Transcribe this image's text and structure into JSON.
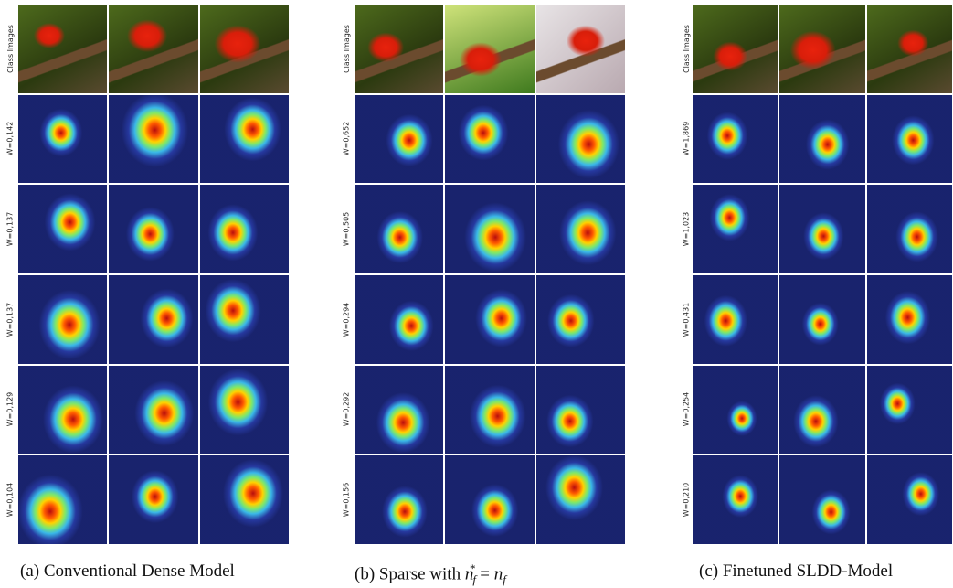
{
  "panels": [
    {
      "caption": [
        "(a) Conventional Dense Model"
      ],
      "row_labels": [
        "Class Images",
        "W=0,142",
        "W=0,137",
        "W=0,137",
        "W=0,129",
        "W=0,104"
      ]
    },
    {
      "caption": [
        "(b) Sparse with ",
        "n",
        "f",
        "*",
        " = ",
        "n",
        "f"
      ],
      "row_labels": [
        "Class Images",
        "W=0,652",
        "W=0,505",
        "W=0,294",
        "W=0,292",
        "W=0,156"
      ]
    },
    {
      "caption": [
        "(c) Finetuned SLDD-Model"
      ],
      "row_labels": [
        "Class Images",
        "W=1,869",
        "W=1,023",
        "W=0,431",
        "W=0,254",
        "W=0,210"
      ]
    }
  ]
}
